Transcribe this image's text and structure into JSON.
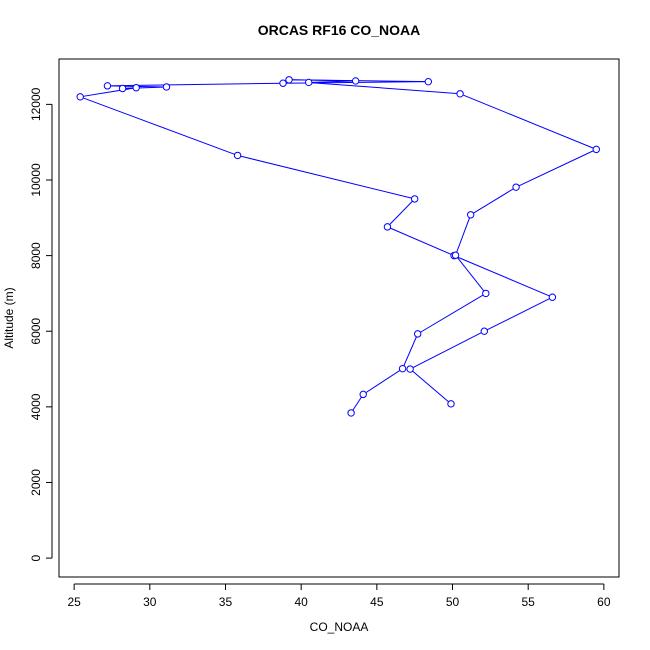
{
  "chart_data": {
    "type": "line",
    "title": "ORCAS RF16 CO_NOAA",
    "xlabel": "CO_NOAA",
    "ylabel": "Altitude (m)",
    "xlim": [
      24,
      61
    ],
    "ylim": [
      -500,
      13200
    ],
    "x_ticks": [
      25,
      30,
      35,
      40,
      45,
      50,
      55,
      60
    ],
    "y_ticks": [
      0,
      2000,
      4000,
      6000,
      8000,
      10000,
      12000
    ],
    "x_tick_labels": [
      "25",
      "30",
      "35",
      "40",
      "45",
      "50",
      "55",
      "60"
    ],
    "y_tick_labels": [
      "0",
      "2000",
      "4000",
      "6000",
      "8000",
      "10000",
      "12000"
    ],
    "grid": false,
    "series": [
      {
        "color": "#0000ff",
        "marker": "open-circle",
        "points": [
          {
            "x": 49.9,
            "y": 4080
          },
          {
            "x": 47.2,
            "y": 5000
          },
          {
            "x": 52.1,
            "y": 6000
          },
          {
            "x": 56.6,
            "y": 6900
          },
          {
            "x": 50.1,
            "y": 8000
          },
          {
            "x": 45.7,
            "y": 8760
          },
          {
            "x": 47.5,
            "y": 9500
          },
          {
            "x": 35.8,
            "y": 10650
          },
          {
            "x": 25.4,
            "y": 12200
          },
          {
            "x": 29.1,
            "y": 12440
          },
          {
            "x": 28.2,
            "y": 12420
          },
          {
            "x": 31.1,
            "y": 12460
          },
          {
            "x": 27.2,
            "y": 12490
          },
          {
            "x": 38.8,
            "y": 12560
          },
          {
            "x": 48.4,
            "y": 12600
          },
          {
            "x": 39.2,
            "y": 12650
          },
          {
            "x": 43.6,
            "y": 12620
          },
          {
            "x": 40.5,
            "y": 12580
          },
          {
            "x": 50.5,
            "y": 12280
          },
          {
            "x": 59.5,
            "y": 10810
          },
          {
            "x": 54.2,
            "y": 9810
          },
          {
            "x": 51.2,
            "y": 9080
          },
          {
            "x": 50.2,
            "y": 8010
          },
          {
            "x": 52.2,
            "y": 7000
          },
          {
            "x": 47.7,
            "y": 5930
          },
          {
            "x": 46.7,
            "y": 5010
          },
          {
            "x": 44.1,
            "y": 4330
          },
          {
            "x": 43.3,
            "y": 3840
          }
        ]
      }
    ]
  }
}
